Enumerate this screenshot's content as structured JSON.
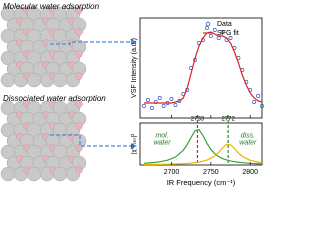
{
  "labels": {
    "top": "Molecular  water adsorption",
    "bottom": "Dissociated  water adsorption"
  },
  "chart_data": [
    {
      "type": "line",
      "ylabel": "VSF Intensity (a.u.)",
      "x": [
        2665,
        2670,
        2675,
        2680,
        2685,
        2690,
        2695,
        2700,
        2705,
        2710,
        2715,
        2720,
        2725,
        2730,
        2735,
        2740,
        2745,
        2750,
        2755,
        2760,
        2765,
        2770,
        2775,
        2780,
        2785,
        2790,
        2795,
        2800,
        2805,
        2810,
        2815
      ],
      "xlim": [
        2660,
        2815
      ],
      "ylim": [
        0,
        1
      ],
      "legend": "top-right",
      "series": [
        {
          "name": "Data",
          "color": "#2a5cc8",
          "marker": "circle",
          "values": [
            0.12,
            0.18,
            0.1,
            0.16,
            0.2,
            0.12,
            0.15,
            0.19,
            0.13,
            0.17,
            0.24,
            0.28,
            0.5,
            0.58,
            0.75,
            0.78,
            0.9,
            0.82,
            0.88,
            0.8,
            0.86,
            0.78,
            0.8,
            0.7,
            0.6,
            0.48,
            0.36,
            0.28,
            0.16,
            0.22,
            0.12
          ]
        },
        {
          "name": "SFG fit",
          "color": "#e02020",
          "marker": "line",
          "values": [
            0.15,
            0.15,
            0.15,
            0.15,
            0.15,
            0.15,
            0.15,
            0.15,
            0.16,
            0.17,
            0.2,
            0.3,
            0.45,
            0.6,
            0.72,
            0.8,
            0.85,
            0.86,
            0.84,
            0.82,
            0.82,
            0.8,
            0.75,
            0.66,
            0.55,
            0.43,
            0.33,
            0.25,
            0.2,
            0.17,
            0.16
          ]
        }
      ]
    },
    {
      "type": "line",
      "ylabel": "|χ⁽²⁾ᵣₑₛ|²",
      "xlabel": "IR Frequency (cm⁻¹)",
      "x": [
        2665,
        2675,
        2685,
        2695,
        2705,
        2715,
        2720,
        2725,
        2730,
        2735,
        2740,
        2745,
        2750,
        2755,
        2760,
        2765,
        2770,
        2775,
        2780,
        2785,
        2790,
        2800,
        2810,
        2815
      ],
      "xlim": [
        2660,
        2815
      ],
      "xticks": [
        2700,
        2750,
        2800
      ],
      "ylim": [
        0,
        1
      ],
      "series": [
        {
          "color": "#3aa03a",
          "values": [
            0.04,
            0.053,
            0.076,
            0.115,
            0.19,
            0.35,
            0.49,
            0.66,
            0.82,
            0.84,
            0.7,
            0.52,
            0.37,
            0.27,
            0.2,
            0.153,
            0.12,
            0.096,
            0.079,
            0.065,
            0.055,
            0.04,
            0.03,
            0.028
          ]
        },
        {
          "color": "#e8b400",
          "values": [
            0.01,
            0.012,
            0.014,
            0.018,
            0.024,
            0.032,
            0.038,
            0.046,
            0.057,
            0.071,
            0.09,
            0.118,
            0.159,
            0.219,
            0.305,
            0.41,
            0.49,
            0.48,
            0.39,
            0.286,
            0.205,
            0.112,
            0.068,
            0.054
          ]
        }
      ],
      "vlines": [
        {
          "x": 2733,
          "color": "#d42020"
        },
        {
          "x": 2772,
          "color": "#2a8a2a"
        }
      ],
      "annotations": [
        {
          "text": "mol.\nwater",
          "x": 2688,
          "y": 0.7,
          "color": "#2a7a2a"
        },
        {
          "text": "diss.\nwater",
          "x": 2797,
          "y": 0.7,
          "color": "#2a7a2a"
        }
      ]
    }
  ]
}
